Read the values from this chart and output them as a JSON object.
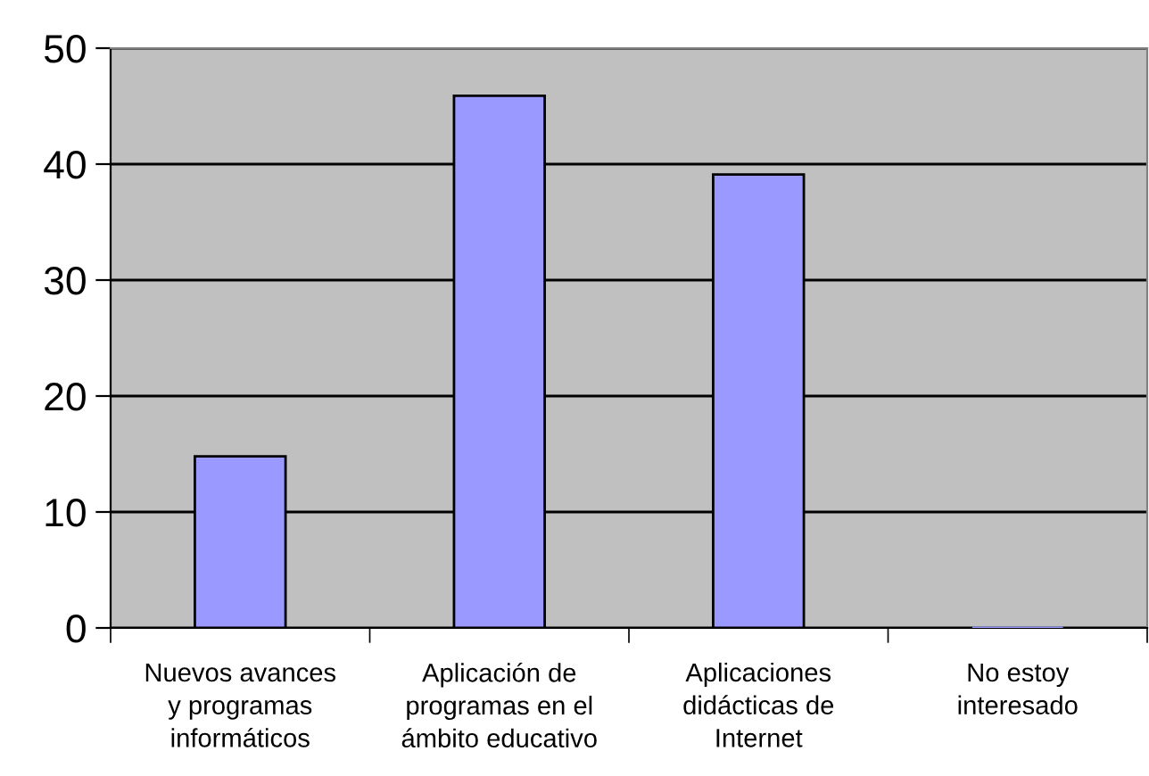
{
  "chart_data": {
    "type": "bar",
    "categories": [
      "Nuevos avances\ny programas\ninformáticos",
      "Aplicación de\nprogramas en el\námbito educativo",
      "Aplicaciones\ndidácticas de\nInternet",
      "No estoy\ninteresado"
    ],
    "values": [
      14.8,
      45.9,
      39.1,
      0
    ],
    "color": "#9999ff",
    "ylim": [
      0,
      50
    ],
    "yticks": [
      0,
      10,
      20,
      30,
      40,
      50
    ],
    "grid": "y"
  }
}
